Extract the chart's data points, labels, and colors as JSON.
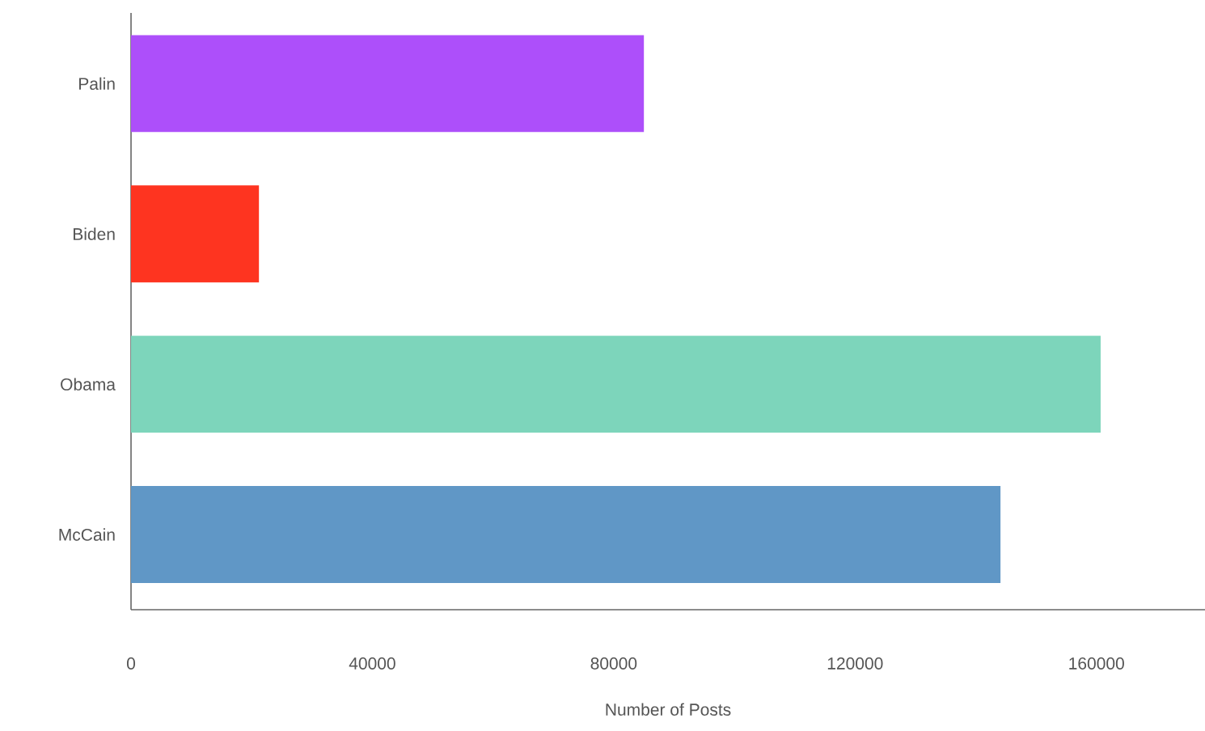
{
  "chart_data": {
    "type": "bar",
    "orientation": "horizontal",
    "xlabel": "Number of Posts",
    "categories": [
      "Palin",
      "Biden",
      "Obama",
      "McCain"
    ],
    "values": [
      85000,
      21200,
      160700,
      144100
    ],
    "colors": [
      "#ad4ffa",
      "#fe3420",
      "#7dd5bb",
      "#6097c6"
    ],
    "xlim": [
      0,
      178000
    ],
    "xticks": [
      0,
      40000,
      80000,
      120000,
      160000
    ],
    "grid": false
  }
}
